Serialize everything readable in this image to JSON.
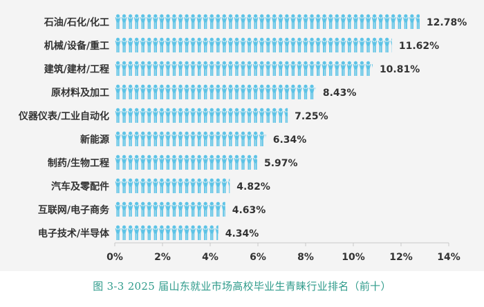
{
  "chart_data": {
    "type": "bar",
    "categories": [
      "石油/石化/化工",
      "机械/设备/重工",
      "建筑/建材/工程",
      "原材料及加工",
      "仪器仪表/工业自动化",
      "新能源",
      "制药/生物工程",
      "汽车及零配件",
      "互联网/电子商务",
      "电子技术/半导体"
    ],
    "values": [
      12.78,
      11.62,
      10.81,
      8.43,
      7.25,
      6.34,
      5.97,
      4.82,
      4.63,
      4.34
    ],
    "value_labels": [
      "12.78%",
      "11.62%",
      "10.81%",
      "8.43%",
      "7.25%",
      "6.34%",
      "5.97%",
      "4.82%",
      "4.63%",
      "4.34%"
    ],
    "x_ticks": [
      0,
      2,
      4,
      6,
      8,
      10,
      12,
      14
    ],
    "x_tick_labels": [
      "0%",
      "2%",
      "4%",
      "6%",
      "8%",
      "10%",
      "12%",
      "14%"
    ],
    "xlim": [
      0,
      14
    ],
    "orientation": "horizontal",
    "mark_style": "pictogram-people",
    "colors": {
      "bar": "#5cc3e6",
      "text": "#333333",
      "axis": "#c8c8c8",
      "caption": "#2f9b8b"
    },
    "grid": false
  },
  "caption": "图 3-3  2025 届山东就业市场高校毕业生青睐行业排名（前十）"
}
